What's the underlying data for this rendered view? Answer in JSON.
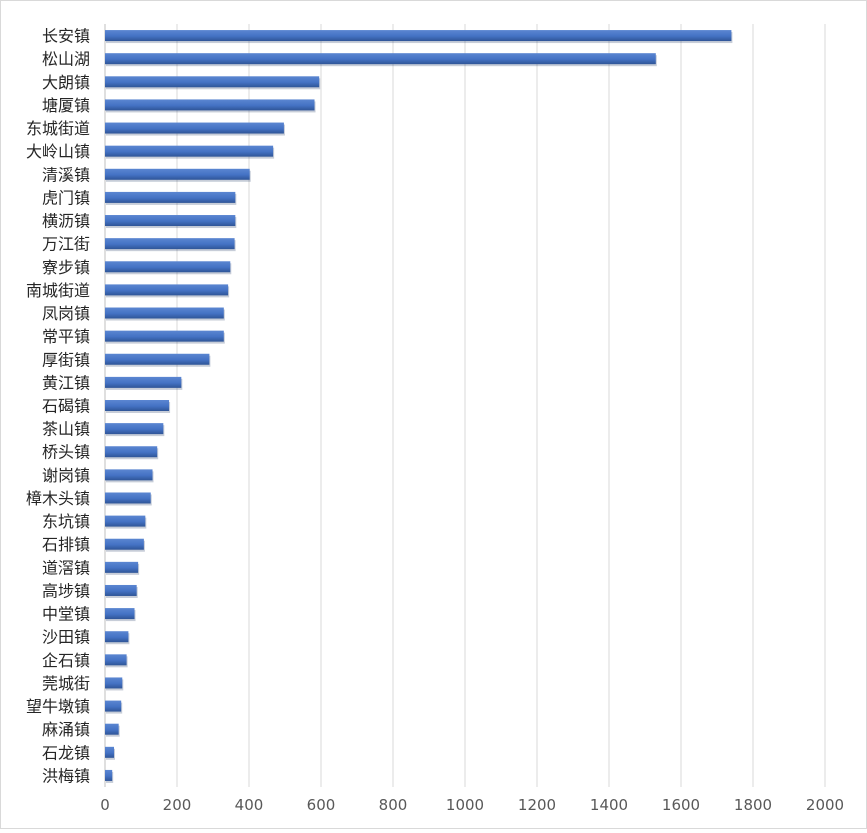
{
  "chart_data": {
    "type": "bar",
    "orientation": "horizontal",
    "title": "",
    "xlabel": "",
    "ylabel": "",
    "xlim": [
      0,
      2000
    ],
    "x_ticks": [
      0,
      200,
      400,
      600,
      800,
      1000,
      1200,
      1400,
      1600,
      1800,
      2000
    ],
    "grid": "vertical",
    "legend": "none",
    "colors": {
      "bar": "#4472C4",
      "gridline": "#D9D9D9",
      "axis": "#BFBFBF",
      "text": "#595959",
      "category_text": "#262626"
    },
    "categories": [
      "长安镇",
      "松山湖",
      "大朗镇",
      "塘厦镇",
      "东城街道",
      "大岭山镇",
      "清溪镇",
      "虎门镇",
      "横沥镇",
      "万江街",
      "寮步镇",
      "南城街道",
      "凤岗镇",
      "常平镇",
      "厚街镇",
      "黄江镇",
      "石碣镇",
      "茶山镇",
      "桥头镇",
      "谢岗镇",
      "樟木头镇",
      "东坑镇",
      "石排镇",
      "道滘镇",
      "高埗镇",
      "中堂镇",
      "沙田镇",
      "企石镇",
      "莞城街",
      "望牛墩镇",
      "麻涌镇",
      "石龙镇",
      "洪梅镇"
    ],
    "values": [
      1740,
      1530,
      595,
      582,
      497,
      467,
      402,
      362,
      362,
      360,
      348,
      342,
      330,
      330,
      290,
      212,
      178,
      162,
      145,
      132,
      127,
      112,
      108,
      92,
      88,
      82,
      65,
      60,
      48,
      45,
      38,
      25,
      20
    ]
  }
}
